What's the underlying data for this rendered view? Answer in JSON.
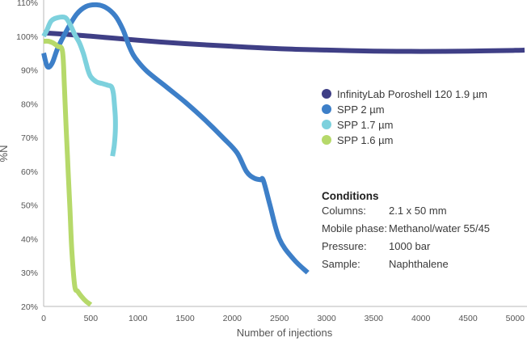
{
  "chart_data": {
    "type": "line",
    "title": "",
    "xlabel": "Number of injections",
    "ylabel": "%N",
    "xlim": [
      0,
      5100
    ],
    "ylim": [
      20,
      110
    ],
    "x_ticks": [
      0,
      500,
      1000,
      1500,
      2000,
      2500,
      3000,
      3500,
      4000,
      4500,
      5000
    ],
    "x_tick_labels": [
      "0",
      "500",
      "1000",
      "1500",
      "2000",
      "2500",
      "3000",
      "3500",
      "4000",
      "4500",
      "5000"
    ],
    "y_ticks": [
      20,
      30,
      40,
      50,
      60,
      70,
      80,
      90,
      100,
      110
    ],
    "y_tick_labels": [
      "20%",
      "30%",
      "40%",
      "50%",
      "60%",
      "70%",
      "80%",
      "90%",
      "100%",
      "110%"
    ],
    "series": [
      {
        "name": "InfinityLab Poroshell 120 1.9 µm",
        "color": "#3f3f86",
        "x": [
          0,
          500,
          1000,
          1500,
          2000,
          2500,
          3000,
          3500,
          4000,
          4500,
          5000,
          5100
        ],
        "y": [
          101,
          100,
          98.8,
          97.8,
          97,
          96.3,
          95.9,
          95.6,
          95.5,
          95.6,
          95.8,
          95.9
        ]
      },
      {
        "name": "SPP 2 µm",
        "color": "#3d7fc8",
        "x": [
          0,
          40,
          90,
          150,
          250,
          350,
          450,
          560,
          660,
          760,
          840,
          900,
          950,
          1000,
          1100,
          1300,
          1500,
          1700,
          1900,
          2050,
          2150,
          2230,
          2300,
          2330,
          2400,
          2500,
          2650,
          2800
        ],
        "y": [
          95,
          91,
          92,
          96.5,
          102,
          106.5,
          108.8,
          109.3,
          108.5,
          106,
          102,
          97.5,
          94.5,
          92.5,
          89.5,
          85,
          80.5,
          75.5,
          70,
          65.5,
          60,
          58,
          57.5,
          57.3,
          50,
          40,
          34,
          30
        ]
      },
      {
        "name": "SPP 1.7 µm",
        "color": "#7dd1dd",
        "x": [
          0,
          30,
          80,
          150,
          230,
          280,
          330,
          380,
          420,
          450,
          470,
          500,
          560,
          620,
          680,
          720,
          740,
          750,
          760,
          760,
          750,
          740,
          730
        ],
        "y": [
          100,
          101.5,
          104.5,
          105.5,
          105.5,
          103.5,
          100.5,
          98,
          95,
          92,
          90,
          88,
          86.5,
          86,
          85.5,
          85,
          83,
          80,
          76,
          72,
          68,
          66,
          64.5
        ]
      },
      {
        "name": "SPP 1.6 µm",
        "color": "#b6d96a",
        "x": [
          0,
          50,
          100,
          150,
          200,
          220,
          240,
          260,
          280,
          300,
          330,
          360,
          400,
          450,
          500
        ],
        "y": [
          98.5,
          98.5,
          98,
          97,
          95.5,
          85,
          72,
          60,
          48,
          36,
          26,
          24.5,
          23,
          21.5,
          20.5
        ]
      }
    ],
    "legend_position": "right"
  },
  "conditions": {
    "title": "Conditions",
    "rows": [
      {
        "label": "Columns:",
        "value": "2.1 x 50 mm"
      },
      {
        "label": "Mobile phase:",
        "value": "Methanol/water 55/45"
      },
      {
        "label": "Pressure:",
        "value": "1000 bar"
      },
      {
        "label": "Sample:",
        "value": "Naphthalene"
      }
    ]
  }
}
